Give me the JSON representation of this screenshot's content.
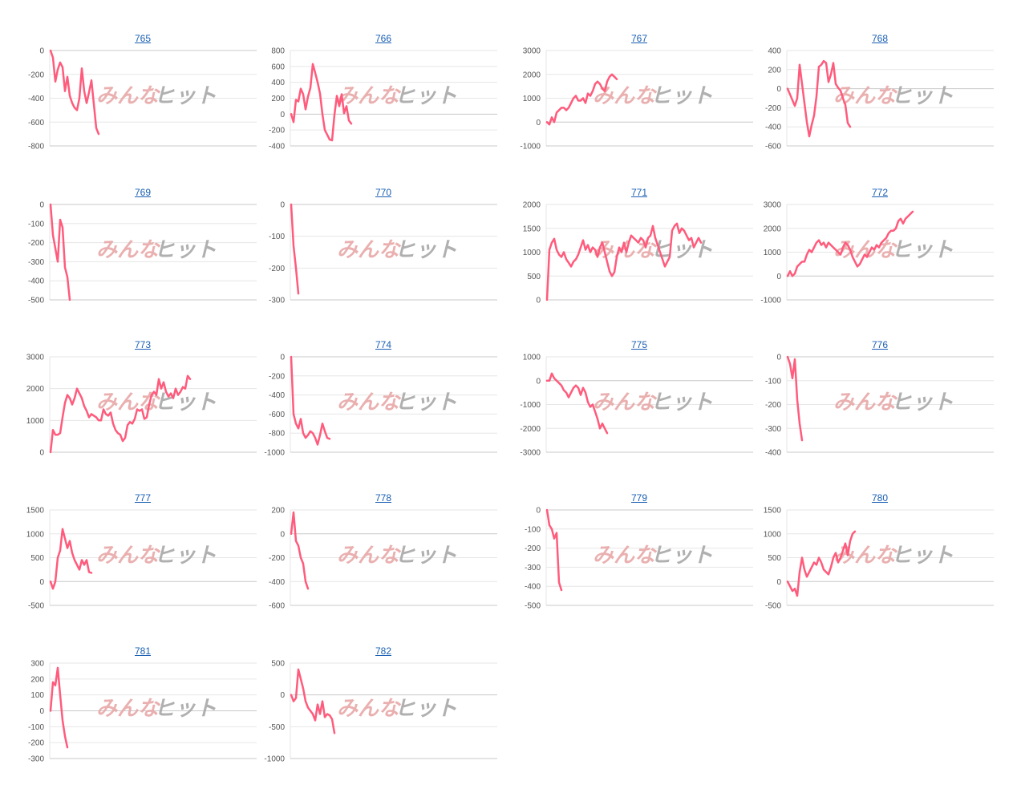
{
  "watermark": {
    "text_left": "みんな",
    "text_right": "ヒット",
    "color_left": "#e8a8a8",
    "color_right": "#a8a8a8"
  },
  "colors": {
    "line": "#ff5b7c",
    "grid": "#e6e6e6",
    "zero": "#c8c8c8",
    "title_link": "#1a5fb4"
  },
  "chart_data": [
    {
      "type": "line",
      "title": "765",
      "yticks": [
        0,
        -200,
        -400,
        -600,
        -800
      ],
      "ylim": [
        -800,
        0
      ],
      "values": [
        0,
        -60,
        -260,
        -160,
        -100,
        -140,
        -340,
        -220,
        -380,
        -440,
        -480,
        -500,
        -400,
        -150,
        -340,
        -440,
        -350,
        -250,
        -450,
        -650,
        -700
      ]
    },
    {
      "type": "line",
      "title": "766",
      "yticks": [
        800,
        600,
        400,
        200,
        0,
        -200,
        -400
      ],
      "ylim": [
        -400,
        800
      ],
      "values": [
        0,
        -100,
        180,
        160,
        320,
        250,
        60,
        220,
        330,
        630,
        520,
        400,
        260,
        0,
        -200,
        -260,
        -320,
        -330,
        -10,
        230,
        100,
        250,
        10,
        100,
        -80,
        -120
      ]
    },
    {
      "type": "line",
      "title": "767",
      "yticks": [
        3000,
        2000,
        1000,
        0,
        -1000
      ],
      "ylim": [
        -1000,
        3000
      ],
      "values": [
        0,
        -100,
        200,
        0,
        400,
        500,
        600,
        600,
        500,
        600,
        800,
        1000,
        1100,
        900,
        900,
        1000,
        800,
        1200,
        1100,
        1300,
        1600,
        1700,
        1600,
        1400,
        1300,
        1700,
        1900,
        2000,
        1900,
        1800
      ]
    },
    {
      "type": "line",
      "title": "768",
      "yticks": [
        400,
        200,
        0,
        -200,
        -400,
        -600
      ],
      "ylim": [
        -600,
        400
      ],
      "values": [
        0,
        -60,
        -120,
        -180,
        -100,
        250,
        50,
        -150,
        -350,
        -500,
        -380,
        -280,
        -80,
        230,
        250,
        290,
        270,
        70,
        150,
        270,
        50,
        10,
        -20,
        -100,
        -170,
        -360,
        -400
      ]
    },
    {
      "type": "line",
      "title": "769",
      "yticks": [
        0,
        -100,
        -200,
        -300,
        -400,
        -500
      ],
      "ylim": [
        -500,
        0
      ],
      "values": [
        0,
        -160,
        -230,
        -300,
        -80,
        -120,
        -330,
        -380,
        -500
      ]
    },
    {
      "type": "line",
      "title": "770",
      "yticks": [
        0,
        -100,
        -200,
        -300
      ],
      "ylim": [
        -300,
        0
      ],
      "values": [
        0,
        -130,
        -200,
        -280
      ]
    },
    {
      "type": "line",
      "title": "771",
      "yticks": [
        2000,
        1500,
        1000,
        500,
        0
      ],
      "ylim": [
        0,
        2000
      ],
      "values": [
        0,
        1050,
        1200,
        1280,
        1050,
        950,
        900,
        1000,
        850,
        780,
        700,
        800,
        850,
        950,
        1100,
        1250,
        1050,
        1150,
        1000,
        1100,
        1050,
        900,
        1100,
        1200,
        1000,
        800,
        600,
        500,
        580,
        900,
        1100,
        1000,
        1200,
        1000,
        1200,
        1350,
        1300,
        1250,
        1200,
        1300,
        1250,
        1100,
        1300,
        1350,
        1550,
        1300,
        1150,
        1000,
        850,
        700,
        800,
        900,
        1450,
        1550,
        1600,
        1400,
        1500,
        1450,
        1350,
        1250,
        1300,
        1100,
        1200,
        1300,
        1200
      ]
    },
    {
      "type": "line",
      "title": "772",
      "yticks": [
        3000,
        2000,
        1000,
        0,
        -1000
      ],
      "ylim": [
        -1000,
        3000
      ],
      "values": [
        0,
        200,
        0,
        100,
        400,
        500,
        600,
        600,
        900,
        1100,
        1000,
        1200,
        1400,
        1500,
        1300,
        1400,
        1200,
        1400,
        1300,
        1200,
        1100,
        1000,
        900,
        1200,
        1400,
        1300,
        1100,
        800,
        600,
        400,
        500,
        700,
        900,
        800,
        1000,
        1200,
        1100,
        1300,
        1200,
        1400,
        1500,
        1600,
        1800,
        1900,
        1900,
        2000,
        2300,
        2400,
        2200,
        2400,
        2500,
        2600,
        2700
      ]
    },
    {
      "type": "line",
      "title": "773",
      "yticks": [
        3000,
        2000,
        1000,
        0
      ],
      "ylim": [
        0,
        3000
      ],
      "values": [
        0,
        700,
        550,
        550,
        600,
        1100,
        1550,
        1800,
        1700,
        1500,
        1700,
        2000,
        1850,
        1700,
        1450,
        1300,
        1100,
        1200,
        1150,
        1100,
        1000,
        1000,
        1350,
        1200,
        1150,
        1250,
        900,
        700,
        600,
        550,
        350,
        450,
        850,
        950,
        900,
        1050,
        1350,
        1300,
        1350,
        1050,
        1100,
        1500,
        1800,
        1900,
        1800,
        2300,
        2000,
        2200,
        1900,
        1750,
        1850,
        1700,
        2000,
        1800,
        1900,
        2050,
        2000,
        2400,
        2300
      ]
    },
    {
      "type": "line",
      "title": "774",
      "yticks": [
        0,
        -200,
        -400,
        -600,
        -800,
        -1000
      ],
      "ylim": [
        -1000,
        0
      ],
      "values": [
        0,
        -600,
        -700,
        -750,
        -650,
        -800,
        -850,
        -820,
        -780,
        -800,
        -850,
        -920,
        -820,
        -700,
        -780,
        -850,
        -860
      ]
    },
    {
      "type": "line",
      "title": "775",
      "yticks": [
        1000,
        0,
        -1000,
        -2000,
        -3000
      ],
      "ylim": [
        -3000,
        1000
      ],
      "values": [
        0,
        0,
        300,
        100,
        0,
        -100,
        -200,
        -400,
        -500,
        -700,
        -500,
        -300,
        -200,
        -300,
        -600,
        -300,
        -500,
        -900,
        -1100,
        -1000,
        -1300,
        -1600,
        -2000,
        -1800,
        -2000,
        -2200
      ]
    },
    {
      "type": "line",
      "title": "776",
      "yticks": [
        0,
        -100,
        -200,
        -300,
        -400
      ],
      "ylim": [
        -400,
        0
      ],
      "values": [
        0,
        -30,
        -90,
        -10,
        -180,
        -280,
        -350
      ]
    },
    {
      "type": "line",
      "title": "777",
      "yticks": [
        1500,
        1000,
        500,
        0,
        -500
      ],
      "ylim": [
        -500,
        1500
      ],
      "values": [
        0,
        -150,
        0,
        500,
        650,
        1100,
        900,
        700,
        850,
        600,
        450,
        350,
        250,
        450,
        350,
        450,
        200,
        180
      ]
    },
    {
      "type": "line",
      "title": "778",
      "yticks": [
        200,
        0,
        -200,
        -400,
        -600
      ],
      "ylim": [
        -600,
        200
      ],
      "values": [
        0,
        180,
        -60,
        -100,
        -200,
        -250,
        -400,
        -460
      ]
    },
    {
      "type": "line",
      "title": "779",
      "yticks": [
        0,
        -100,
        -200,
        -300,
        -400,
        -500
      ],
      "ylim": [
        -500,
        0
      ],
      "values": [
        0,
        -80,
        -100,
        -150,
        -120,
        -380,
        -420
      ]
    },
    {
      "type": "line",
      "title": "780",
      "yticks": [
        1500,
        1000,
        500,
        0,
        -500
      ],
      "ylim": [
        -500,
        1500
      ],
      "values": [
        0,
        -100,
        -200,
        -150,
        -300,
        200,
        500,
        250,
        100,
        200,
        300,
        400,
        350,
        500,
        400,
        250,
        200,
        150,
        300,
        500,
        600,
        400,
        500,
        650,
        800,
        550,
        850,
        1000,
        1050
      ]
    },
    {
      "type": "line",
      "title": "781",
      "yticks": [
        300,
        200,
        100,
        0,
        -100,
        -200,
        -300
      ],
      "ylim": [
        -300,
        300
      ],
      "values": [
        0,
        180,
        160,
        270,
        100,
        -60,
        -160,
        -230
      ]
    },
    {
      "type": "line",
      "title": "782",
      "yticks": [
        500,
        0,
        -500,
        -1000
      ],
      "ylim": [
        -1000,
        500
      ],
      "values": [
        0,
        -100,
        -50,
        400,
        250,
        100,
        -100,
        -200,
        -250,
        -300,
        -400,
        -150,
        -300,
        -100,
        -350,
        -300,
        -320,
        -380,
        -600
      ]
    }
  ]
}
